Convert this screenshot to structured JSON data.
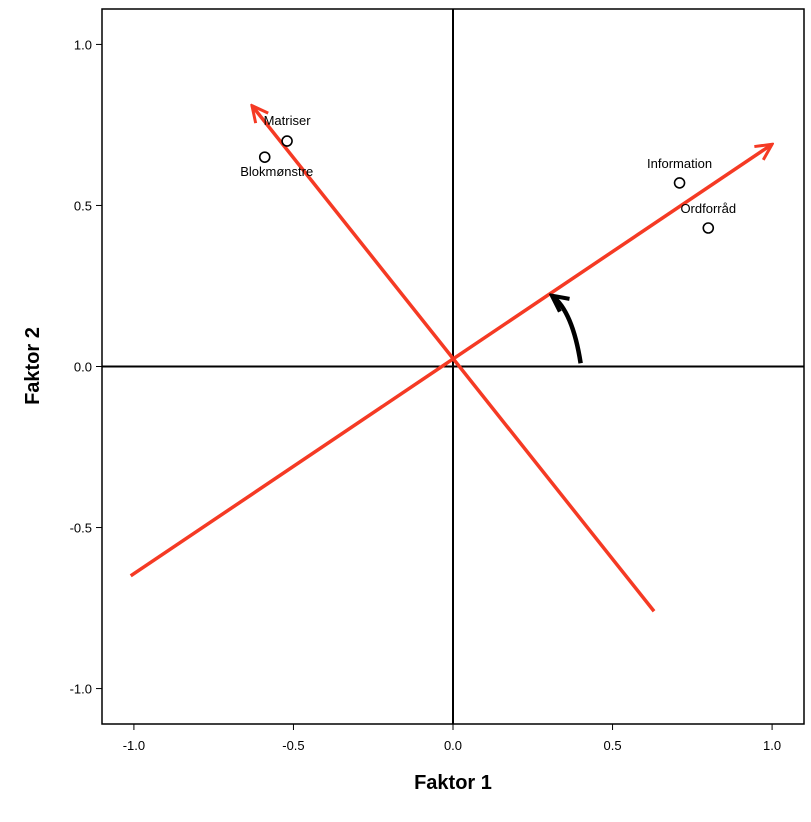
{
  "chart_data": {
    "type": "scatter",
    "xlabel": "Faktor 1",
    "ylabel": "Faktor 2",
    "xlim": [
      -1.1,
      1.1
    ],
    "ylim": [
      -1.11,
      1.11
    ],
    "x_ticks": [
      -1.0,
      -0.5,
      0.0,
      0.5,
      1.0
    ],
    "y_ticks": [
      -1.0,
      -0.5,
      0.0,
      0.5,
      1.0
    ],
    "x_tick_labels": [
      "-1.0",
      "-0.5",
      "0.0",
      "0.5",
      "1.0"
    ],
    "y_tick_labels": [
      "-1.0",
      "-0.5",
      "0.0",
      "0.5",
      "1.0"
    ],
    "points": [
      {
        "label": "Matriser",
        "x": -0.52,
        "y": 0.7
      },
      {
        "label": "Blokmønstre",
        "x": -0.59,
        "y": 0.65
      },
      {
        "label": "Information",
        "x": 0.71,
        "y": 0.57
      },
      {
        "label": "Ordforråd",
        "x": 0.8,
        "y": 0.43
      }
    ],
    "reference_lines": [
      {
        "orientation": "vertical",
        "x": 0.0
      },
      {
        "orientation": "horizontal",
        "y": 0.0
      }
    ],
    "rotated_axes": [
      {
        "from": [
          -1.01,
          -0.65
        ],
        "to": [
          1.0,
          0.69
        ],
        "arrow": true
      },
      {
        "from": [
          0.63,
          -0.76
        ],
        "to": [
          -0.63,
          0.81
        ],
        "arrow": true
      }
    ],
    "rotation_arrow": {
      "from": [
        0.4,
        0.01
      ],
      "to": [
        0.31,
        0.22
      ]
    },
    "colors": {
      "rotated_axes": "#f53a24",
      "points": "#000000",
      "rotation_arrow": "#000000"
    }
  }
}
